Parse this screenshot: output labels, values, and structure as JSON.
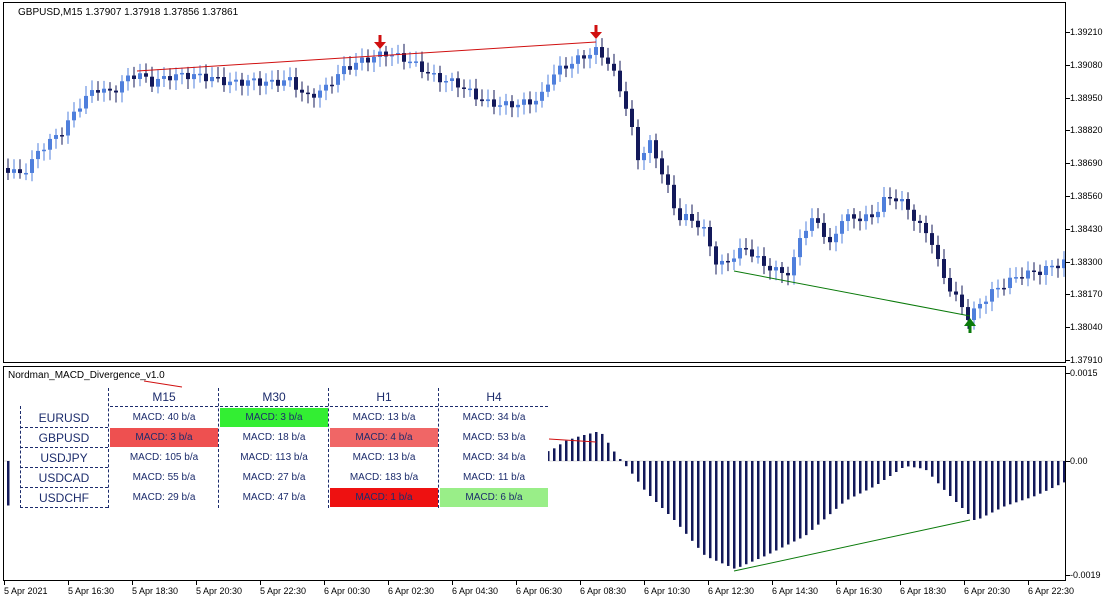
{
  "main_chart": {
    "label": "GBPUSD,M15  1.37907 1.37918 1.37856 1.37861",
    "price_axis": [
      "1.39210",
      "1.39080",
      "1.38950",
      "1.38820",
      "1.38690",
      "1.38560",
      "1.38430",
      "1.38300",
      "1.38170",
      "1.38040",
      "1.37910"
    ],
    "colors": {
      "bull": "#4f7fdc",
      "bear": "#13195a",
      "bearish_divergence": "#d01010",
      "bullish_divergence": "#0a7a0a"
    }
  },
  "indicator": {
    "label": "Nordman_MACD_Divergence_v1.0",
    "axis": [
      "0.0015",
      "0.00",
      "-0.0019"
    ]
  },
  "time_axis": [
    "5 Apr 2021",
    "5 Apr 16:30",
    "5 Apr 18:30",
    "5 Apr 20:30",
    "5 Apr 22:30",
    "6 Apr 00:30",
    "6 Apr 02:30",
    "6 Apr 04:30",
    "6 Apr 06:30",
    "6 Apr 08:30",
    "6 Apr 10:30",
    "6 Apr 12:30",
    "6 Apr 14:30",
    "6 Apr 16:30",
    "6 Apr 18:30",
    "6 Apr 20:30",
    "6 Apr 22:30"
  ],
  "dashboard": {
    "timeframes": [
      "M15",
      "M30",
      "H1",
      "H4"
    ],
    "rows": [
      {
        "symbol": "EURUSD",
        "cells": [
          "MACD: 40 b/a",
          "MACD: 3 b/a",
          "MACD: 13 b/a",
          "MACD: 34 b/a"
        ],
        "colors": [
          "",
          "#33ee33",
          "",
          ""
        ]
      },
      {
        "symbol": "GBPUSD",
        "cells": [
          "MACD: 3 b/a",
          "MACD: 18 b/a",
          "MACD: 4 b/a",
          "MACD: 53 b/a"
        ],
        "colors": [
          "#ee5050",
          "",
          "#f06666",
          ""
        ]
      },
      {
        "symbol": "USDJPY",
        "cells": [
          "MACD: 105 b/a",
          "MACD: 113 b/a",
          "MACD: 13 b/a",
          "MACD: 34 b/a"
        ],
        "colors": [
          "",
          "",
          "",
          ""
        ]
      },
      {
        "symbol": "USDCAD",
        "cells": [
          "MACD: 55 b/a",
          "MACD: 27 b/a",
          "MACD: 183 b/a",
          "MACD: 11 b/a"
        ],
        "colors": [
          "",
          "",
          "",
          ""
        ]
      },
      {
        "symbol": "USDCHF",
        "cells": [
          "MACD: 29 b/a",
          "MACD: 47 b/a",
          "MACD: 1 b/a",
          "MACD: 6 b/a"
        ],
        "colors": [
          "",
          "",
          "#ee1111",
          "#99ee88"
        ]
      }
    ]
  }
}
